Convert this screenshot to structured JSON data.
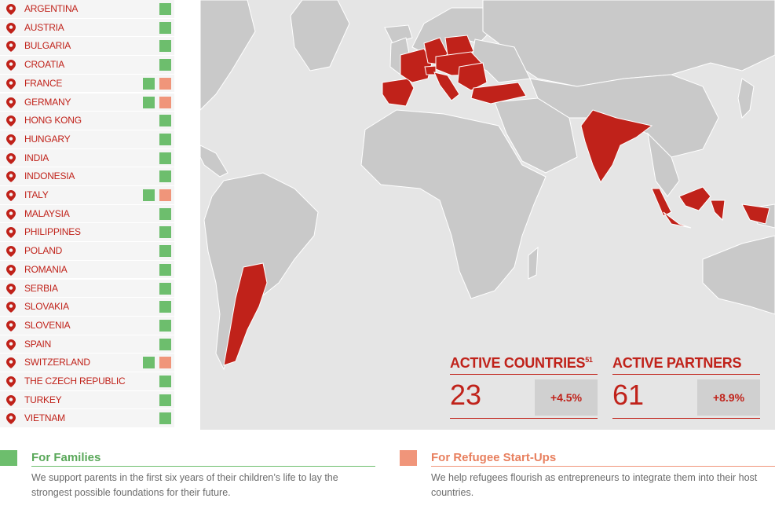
{
  "countries": [
    {
      "name": "ARGENTINA",
      "families": true,
      "refugees": false
    },
    {
      "name": "AUSTRIA",
      "families": true,
      "refugees": false
    },
    {
      "name": "BULGARIA",
      "families": true,
      "refugees": false
    },
    {
      "name": "CROATIA",
      "families": true,
      "refugees": false
    },
    {
      "name": "FRANCE",
      "families": true,
      "refugees": true
    },
    {
      "name": "GERMANY",
      "families": true,
      "refugees": true
    },
    {
      "name": "HONG KONG",
      "families": true,
      "refugees": false
    },
    {
      "name": "HUNGARY",
      "families": true,
      "refugees": false
    },
    {
      "name": "INDIA",
      "families": true,
      "refugees": false
    },
    {
      "name": "INDONESIA",
      "families": true,
      "refugees": false
    },
    {
      "name": "ITALY",
      "families": true,
      "refugees": true
    },
    {
      "name": "MALAYSIA",
      "families": true,
      "refugees": false
    },
    {
      "name": "PHILIPPINES",
      "families": true,
      "refugees": false
    },
    {
      "name": "POLAND",
      "families": true,
      "refugees": false
    },
    {
      "name": "ROMANIA",
      "families": true,
      "refugees": false
    },
    {
      "name": "SERBIA",
      "families": true,
      "refugees": false
    },
    {
      "name": "SLOVAKIA",
      "families": true,
      "refugees": false
    },
    {
      "name": "SLOVENIA",
      "families": true,
      "refugees": false
    },
    {
      "name": "SPAIN",
      "families": true,
      "refugees": false
    },
    {
      "name": "SWITZERLAND",
      "families": true,
      "refugees": true
    },
    {
      "name": "THE CZECH REPUBLIC",
      "families": true,
      "refugees": false
    },
    {
      "name": "TURKEY",
      "families": true,
      "refugees": false
    },
    {
      "name": "VIETNAM",
      "families": true,
      "refugees": false
    }
  ],
  "stats": {
    "countries": {
      "title": "ACTIVE COUNTRIES",
      "footnote": "51",
      "value": "23",
      "change": "+4.5%"
    },
    "partners": {
      "title": "ACTIVE PARTNERS",
      "value": "61",
      "change": "+8.9%"
    }
  },
  "legend": {
    "families": {
      "title": "For Families",
      "description": "We support parents in the first six years of their children’s life to lay the strongest possible foundations for their future.",
      "color": "#6dbe6d"
    },
    "refugees": {
      "title": "For Refugee Start-Ups",
      "description": "We help refugees flourish as entrepreneurs to integrate them into their host countries.",
      "color": "#f0957a"
    }
  },
  "colors": {
    "accent": "#c0221a",
    "map_land": "#c9c9c9",
    "map_water": "#e5e5e5"
  },
  "icons": {
    "pin": "map-pin-icon"
  }
}
